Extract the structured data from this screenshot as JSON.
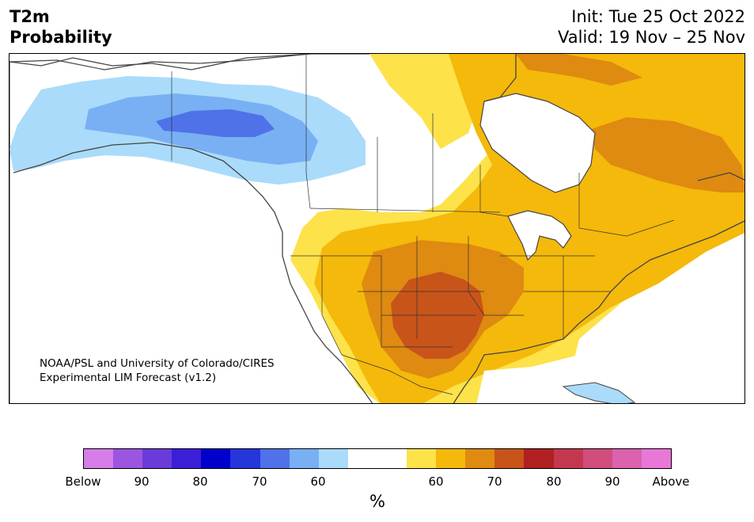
{
  "header": {
    "title_line1": "T2m",
    "title_line2": "Probability",
    "init": "Init: Tue 25 Oct 2022",
    "valid": "Valid: 19 Nov – 25 Nov"
  },
  "credit": {
    "line1": "NOAA/PSL and University of Colorado/CIRES",
    "line2": "Experimental LIM Forecast (v1.2)"
  },
  "colorbar": {
    "colors": [
      "#d67de8",
      "#9b55e0",
      "#6a3bd9",
      "#3a1fd6",
      "#0000cc",
      "#2536db",
      "#4f72e8",
      "#78b0f3",
      "#aadbfa",
      "#ffffff",
      "#ffffff",
      "#fde24a",
      "#f4b90a",
      "#df8a10",
      "#c8541a",
      "#b02020",
      "#c3384e",
      "#d04d7e",
      "#db62ad",
      "#e877d8"
    ],
    "tick_labels": [
      "Below",
      "90",
      "80",
      "70",
      "60",
      "60",
      "70",
      "80",
      "90",
      "Above"
    ],
    "unit": "%"
  },
  "map": {
    "legend_colors": {
      "below_60": "#aadbfa",
      "below_70": "#78b0f3",
      "below_80": "#4f72e8",
      "above_50": "#fde24a",
      "above_60": "#f4b90a",
      "above_70": "#df8a10",
      "above_80": "#c8541a",
      "coast": "#444444",
      "water": "#ffffff"
    }
  }
}
